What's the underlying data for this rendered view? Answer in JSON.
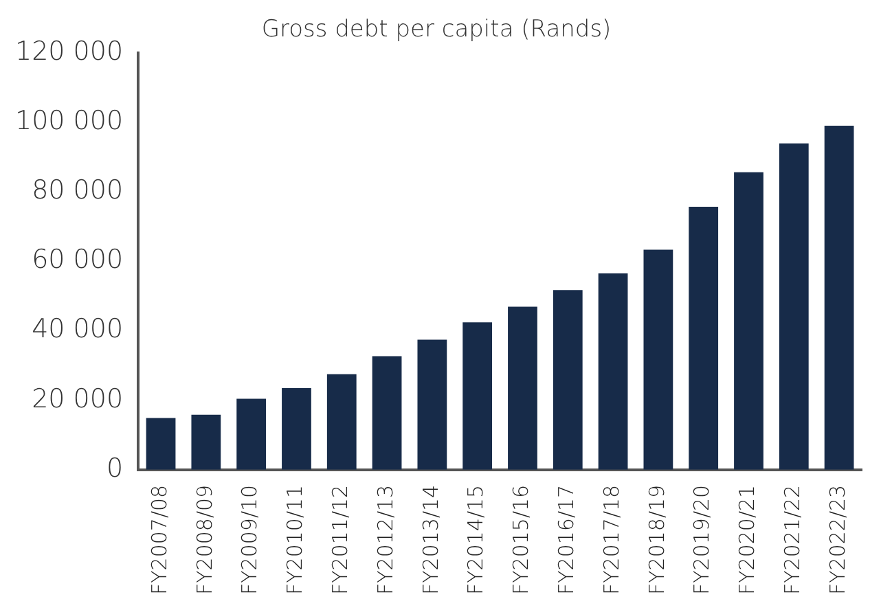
{
  "chart_data": {
    "type": "bar",
    "title": "Gross debt per capita (Rands)",
    "categories": [
      "FY2007/08",
      "FY2008/09",
      "FY2009/10",
      "FY2010/11",
      "FY2011/12",
      "FY2012/13",
      "FY2013/14",
      "FY2014/15",
      "FY2015/16",
      "FY2016/17",
      "FY2017/18",
      "FY2018/19",
      "FY2019/20",
      "FY2020/21",
      "FY2021/22",
      "FY2022/23"
    ],
    "values": [
      14900,
      15800,
      20400,
      23500,
      27500,
      32700,
      37400,
      42400,
      46900,
      51700,
      56500,
      63300,
      75700,
      85600,
      93900,
      99000
    ],
    "color": "#172b49",
    "ylim": [
      0,
      120000
    ],
    "yticks": [
      {
        "value": 0,
        "label": "0"
      },
      {
        "value": 20000,
        "label": "20 000"
      },
      {
        "value": 40000,
        "label": "40 000"
      },
      {
        "value": 60000,
        "label": "60 000"
      },
      {
        "value": 80000,
        "label": "80 000"
      },
      {
        "value": 100000,
        "label": "100 000"
      },
      {
        "value": 120000,
        "label": "120 000"
      }
    ],
    "grid": false,
    "legend": false
  }
}
